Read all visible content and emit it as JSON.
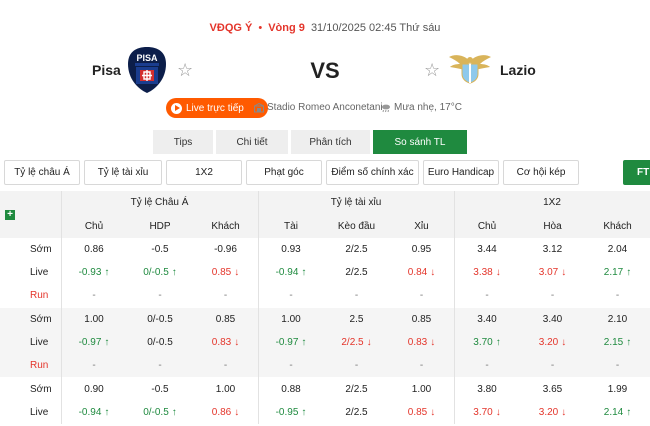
{
  "header": {
    "league": "VĐQG Ý",
    "round": "Vòng 9",
    "datetime": "31/10/2025 02:45 Thứ sáu",
    "home_team": "Pisa",
    "away_team": "Lazio",
    "home_crest_text": "PISA",
    "vs": "VS",
    "live_label": "Live trực tiếp",
    "stadium": "Stadio Romeo Anconetani",
    "weather": "Mưa nhẹ, 17°C"
  },
  "tabs": [
    {
      "label": "Tips",
      "active": false
    },
    {
      "label": "Chi tiết",
      "active": false
    },
    {
      "label": "Phân tích",
      "active": false
    },
    {
      "label": "So sánh TL",
      "active": true
    }
  ],
  "filters": [
    "Tỷ lệ châu Á",
    "Tỷ lệ tài xỉu",
    "1X2",
    "Phạt góc",
    "Điểm số chính xác",
    "Euro Handicap",
    "Cơ hội kép"
  ],
  "ft_label": "FT",
  "table": {
    "groups": [
      "Tỷ lệ Châu Á",
      "Tỷ lệ tài xỉu",
      "1X2"
    ],
    "columns": [
      "Chủ",
      "HDP",
      "Khách",
      "Tài",
      "Kèo đầu",
      "Xỉu",
      "Chủ",
      "Hòa",
      "Khách"
    ],
    "blocks": [
      {
        "rows": [
          {
            "label": "Sớm",
            "label_color": "normal",
            "cells": [
              {
                "v": "0.86",
                "c": "normal",
                "a": ""
              },
              {
                "v": "-0.5",
                "c": "normal",
                "a": ""
              },
              {
                "v": "-0.96",
                "c": "normal",
                "a": ""
              },
              {
                "v": "0.93",
                "c": "normal",
                "a": ""
              },
              {
                "v": "2/2.5",
                "c": "normal",
                "a": ""
              },
              {
                "v": "0.95",
                "c": "normal",
                "a": ""
              },
              {
                "v": "3.44",
                "c": "normal",
                "a": ""
              },
              {
                "v": "3.12",
                "c": "normal",
                "a": ""
              },
              {
                "v": "2.04",
                "c": "normal",
                "a": ""
              }
            ]
          },
          {
            "label": "Live",
            "label_color": "normal",
            "cells": [
              {
                "v": "-0.93",
                "c": "green",
                "a": "↑"
              },
              {
                "v": "0/-0.5",
                "c": "green",
                "a": "↑"
              },
              {
                "v": "0.85",
                "c": "red",
                "a": "↓"
              },
              {
                "v": "-0.94",
                "c": "green",
                "a": "↑"
              },
              {
                "v": "2/2.5",
                "c": "normal",
                "a": ""
              },
              {
                "v": "0.84",
                "c": "red",
                "a": "↓"
              },
              {
                "v": "3.38",
                "c": "red",
                "a": "↓"
              },
              {
                "v": "3.07",
                "c": "red",
                "a": "↓"
              },
              {
                "v": "2.17",
                "c": "green",
                "a": "↑"
              }
            ]
          },
          {
            "label": "Run",
            "label_color": "red",
            "cells": [
              {
                "v": "-",
                "c": "normal",
                "a": ""
              },
              {
                "v": "-",
                "c": "normal",
                "a": ""
              },
              {
                "v": "-",
                "c": "normal",
                "a": ""
              },
              {
                "v": "-",
                "c": "normal",
                "a": ""
              },
              {
                "v": "-",
                "c": "normal",
                "a": ""
              },
              {
                "v": "-",
                "c": "normal",
                "a": ""
              },
              {
                "v": "-",
                "c": "normal",
                "a": ""
              },
              {
                "v": "-",
                "c": "normal",
                "a": ""
              },
              {
                "v": "-",
                "c": "normal",
                "a": ""
              }
            ]
          }
        ]
      },
      {
        "rows": [
          {
            "label": "Sớm",
            "label_color": "normal",
            "cells": [
              {
                "v": "1.00",
                "c": "normal",
                "a": ""
              },
              {
                "v": "0/-0.5",
                "c": "normal",
                "a": ""
              },
              {
                "v": "0.85",
                "c": "normal",
                "a": ""
              },
              {
                "v": "1.00",
                "c": "normal",
                "a": ""
              },
              {
                "v": "2.5",
                "c": "normal",
                "a": ""
              },
              {
                "v": "0.85",
                "c": "normal",
                "a": ""
              },
              {
                "v": "3.40",
                "c": "normal",
                "a": ""
              },
              {
                "v": "3.40",
                "c": "normal",
                "a": ""
              },
              {
                "v": "2.10",
                "c": "normal",
                "a": ""
              }
            ]
          },
          {
            "label": "Live",
            "label_color": "normal",
            "cells": [
              {
                "v": "-0.97",
                "c": "green",
                "a": "↑"
              },
              {
                "v": "0/-0.5",
                "c": "normal",
                "a": ""
              },
              {
                "v": "0.83",
                "c": "red",
                "a": "↓"
              },
              {
                "v": "-0.97",
                "c": "green",
                "a": "↑"
              },
              {
                "v": "2/2.5",
                "c": "red",
                "a": "↓"
              },
              {
                "v": "0.83",
                "c": "red",
                "a": "↓"
              },
              {
                "v": "3.70",
                "c": "green",
                "a": "↑"
              },
              {
                "v": "3.20",
                "c": "red",
                "a": "↓"
              },
              {
                "v": "2.15",
                "c": "green",
                "a": "↑"
              }
            ]
          },
          {
            "label": "Run",
            "label_color": "red",
            "cells": [
              {
                "v": "-",
                "c": "normal",
                "a": ""
              },
              {
                "v": "-",
                "c": "normal",
                "a": ""
              },
              {
                "v": "-",
                "c": "normal",
                "a": ""
              },
              {
                "v": "-",
                "c": "normal",
                "a": ""
              },
              {
                "v": "-",
                "c": "normal",
                "a": ""
              },
              {
                "v": "-",
                "c": "normal",
                "a": ""
              },
              {
                "v": "-",
                "c": "normal",
                "a": ""
              },
              {
                "v": "-",
                "c": "normal",
                "a": ""
              },
              {
                "v": "-",
                "c": "normal",
                "a": ""
              }
            ]
          }
        ]
      },
      {
        "rows": [
          {
            "label": "Sớm",
            "label_color": "normal",
            "cells": [
              {
                "v": "0.90",
                "c": "normal",
                "a": ""
              },
              {
                "v": "-0.5",
                "c": "normal",
                "a": ""
              },
              {
                "v": "1.00",
                "c": "normal",
                "a": ""
              },
              {
                "v": "0.88",
                "c": "normal",
                "a": ""
              },
              {
                "v": "2/2.5",
                "c": "normal",
                "a": ""
              },
              {
                "v": "1.00",
                "c": "normal",
                "a": ""
              },
              {
                "v": "3.80",
                "c": "normal",
                "a": ""
              },
              {
                "v": "3.65",
                "c": "normal",
                "a": ""
              },
              {
                "v": "1.99",
                "c": "normal",
                "a": ""
              }
            ]
          },
          {
            "label": "Live",
            "label_color": "normal",
            "cells": [
              {
                "v": "-0.94",
                "c": "green",
                "a": "↑"
              },
              {
                "v": "0/-0.5",
                "c": "green",
                "a": "↑"
              },
              {
                "v": "0.86",
                "c": "red",
                "a": "↓"
              },
              {
                "v": "-0.95",
                "c": "green",
                "a": "↑"
              },
              {
                "v": "2/2.5",
                "c": "normal",
                "a": ""
              },
              {
                "v": "0.85",
                "c": "red",
                "a": "↓"
              },
              {
                "v": "3.70",
                "c": "red",
                "a": "↓"
              },
              {
                "v": "3.20",
                "c": "red",
                "a": "↓"
              },
              {
                "v": "2.14",
                "c": "green",
                "a": "↑"
              }
            ]
          }
        ]
      }
    ]
  },
  "colors": {
    "accent_green": "#1f8a3f",
    "accent_red": "#e4352b",
    "live_orange": "#ff5a00"
  },
  "icons": [
    "star-icon",
    "play-icon",
    "stadium-icon",
    "weather-icon",
    "plus-icon",
    "arrow-up-icon",
    "arrow-down-icon"
  ]
}
